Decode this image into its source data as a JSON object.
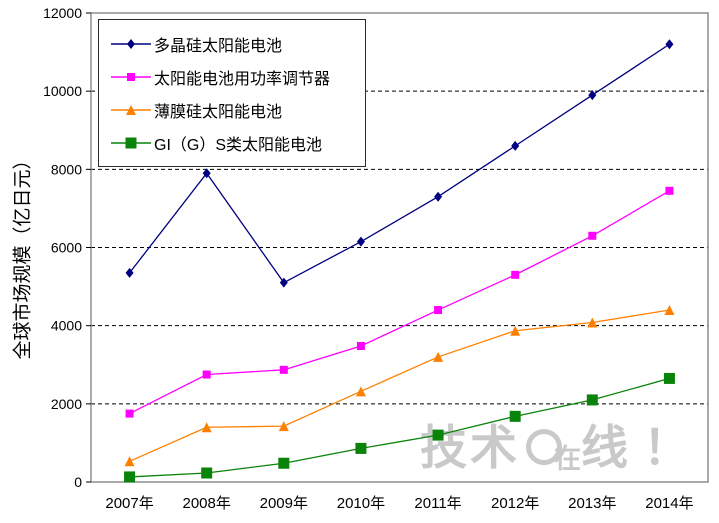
{
  "watermark": {
    "part1": "技术",
    "part2": "在",
    "part3": "线",
    "bang": "！"
  },
  "colors": {
    "plot_border": "#858585",
    "grid": "#000000",
    "tick_text": "#000000",
    "watermark": "#c9c9c9",
    "background": "#ffffff"
  },
  "chart_data": {
    "type": "line",
    "title": "",
    "ylabel": "全球市场规模（亿日元）",
    "xlabel": "",
    "ylim": [
      0,
      12000
    ],
    "ytick_step": 2000,
    "ytick_labels": [
      "0",
      "2000",
      "4000",
      "6000",
      "8000",
      "10000",
      "12000"
    ],
    "grid": "horizontal-dashed",
    "legend_position": "top-left-inside",
    "categories": [
      "2007年",
      "2008年",
      "2009年",
      "2010年",
      "2011年",
      "2012年",
      "2013年",
      "2014年"
    ],
    "series": [
      {
        "name": "多晶硅太阳能电池",
        "marker": "diamond",
        "color": "#000080",
        "values": [
          5350,
          7900,
          5100,
          6150,
          7300,
          8600,
          9900,
          11200
        ]
      },
      {
        "name": "太阳能电池用功率调节器",
        "marker": "square",
        "color": "#ff00ff",
        "values": [
          1750,
          2750,
          2870,
          3480,
          4400,
          5300,
          6300,
          7450
        ]
      },
      {
        "name": "薄膜硅太阳能电池",
        "marker": "triangle",
        "color": "#ff8000",
        "values": [
          530,
          1400,
          1430,
          2320,
          3200,
          3870,
          4080,
          4400
        ]
      },
      {
        "name": "GI（G）S类太阳能电池",
        "marker": "square",
        "color": "#0a830a",
        "values": [
          130,
          230,
          480,
          860,
          1200,
          1680,
          2100,
          2650
        ]
      }
    ]
  }
}
